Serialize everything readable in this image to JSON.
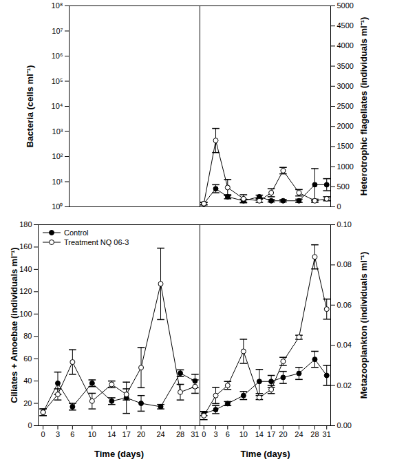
{
  "chart_data": [
    {
      "type": "line",
      "y_label": "Bacteria (cells ml⁻¹)",
      "log": "y",
      "tick_labels": "y",
      "grid": false,
      "x": [],
      "series": [],
      "xlim": [
        -1,
        32
      ],
      "ylim": [
        1,
        100000000
      ],
      "yticks": [
        {
          "value": 1,
          "label": "10⁰"
        },
        {
          "value": 10,
          "label": "10¹"
        },
        {
          "value": 100,
          "label": "10²"
        },
        {
          "value": 1000,
          "label": "10³"
        },
        {
          "value": 10000,
          "label": "10⁴"
        },
        {
          "value": 100000,
          "label": "10⁵"
        },
        {
          "value": 1000000,
          "label": "10⁶"
        },
        {
          "value": 10000000,
          "label": "10⁷"
        },
        {
          "value": 100000000,
          "label": "10⁸"
        }
      ]
    },
    {
      "type": "line",
      "y_label": "Heterotrophic flagellates (individuals ml⁻¹)",
      "tick_labels": "y",
      "grid": false,
      "x": [
        0,
        3,
        6,
        10,
        14,
        17,
        20,
        24,
        28,
        31
      ],
      "series": [
        {
          "name": "Control",
          "color": "#000000",
          "marker": "circle",
          "values": [
            80,
            450,
            250,
            150,
            250,
            150,
            150,
            150,
            550,
            550
          ],
          "errors": [
            30,
            100,
            50,
            40,
            40,
            30,
            30,
            40,
            400,
            150
          ]
        },
        {
          "name": "Treatment NQ 06-3",
          "color": "#000000",
          "marker": "open_circle",
          "values": [
            80,
            1650,
            480,
            200,
            150,
            350,
            900,
            350,
            150,
            200
          ],
          "errors": [
            30,
            300,
            200,
            100,
            40,
            100,
            80,
            80,
            40,
            50
          ]
        }
      ],
      "xlim": [
        -1,
        32
      ],
      "ylim": [
        0,
        5000
      ],
      "yticks": [
        0,
        500,
        1000,
        1500,
        2000,
        2500,
        3000,
        3500,
        4000,
        4500,
        5000
      ]
    },
    {
      "type": "line",
      "x_label": "Time (days)",
      "y_label": "Ciliates + Amoebae (individuals ml⁻¹)",
      "legend": "top-left",
      "grid": false,
      "x": [
        0,
        3,
        6,
        10,
        14,
        17,
        20,
        24,
        28,
        31
      ],
      "series": [
        {
          "name": "Control",
          "color": "#000000",
          "marker": "circle",
          "values": [
            12,
            38,
            17,
            38,
            22,
            25,
            20,
            17,
            47,
            40
          ],
          "errors": [
            3,
            10,
            3,
            3,
            3,
            14,
            7,
            2,
            3,
            6
          ]
        },
        {
          "name": "Treatment NQ 06-3",
          "color": "#000000",
          "marker": "open_circle",
          "values": [
            12,
            28,
            57,
            22,
            37,
            28,
            52,
            127,
            30,
            35
          ],
          "errors": [
            3,
            5,
            11,
            7,
            3,
            5,
            18,
            32,
            7,
            6
          ]
        }
      ],
      "xlim": [
        -1,
        32
      ],
      "xticks": [
        0,
        3,
        6,
        10,
        14,
        17,
        20,
        24,
        28,
        31
      ],
      "ylim": [
        0,
        180
      ],
      "yticks": [
        0,
        20,
        40,
        60,
        80,
        100,
        120,
        140,
        160,
        180
      ]
    },
    {
      "type": "line",
      "x_label": "Time (days)",
      "y_label": "Metazooplankton (individuals ml⁻¹)",
      "grid": false,
      "x": [
        0,
        3,
        6,
        10,
        14,
        17,
        20,
        24,
        28,
        31
      ],
      "series": [
        {
          "name": "Control",
          "color": "#000000",
          "marker": "circle",
          "values": [
            0.006,
            0.008,
            0.011,
            0.015,
            0.022,
            0.022,
            0.024,
            0.026,
            0.033,
            0.025
          ],
          "errors": [
            0.001,
            0.002,
            0.001,
            0.002,
            0.006,
            0.003,
            0.003,
            0.003,
            0.004,
            0.005
          ]
        },
        {
          "name": "Treatment NQ 06-3",
          "color": "#000000",
          "marker": "open_circle",
          "values": [
            0.005,
            0.015,
            0.02,
            0.037,
            0.014,
            0.018,
            0.032,
            0.044,
            0.084,
            0.058
          ],
          "errors": [
            0.002,
            0.004,
            0.002,
            0.006,
            0.001,
            0.002,
            0.002,
            0.001,
            0.006,
            0.005
          ]
        }
      ],
      "xlim": [
        -1,
        32
      ],
      "xticks": [
        0,
        3,
        6,
        10,
        14,
        17,
        20,
        24,
        28,
        31
      ],
      "ylim": [
        0,
        0.1
      ],
      "yticks": [
        {
          "value": 0,
          "label": "0.00"
        },
        {
          "value": 0.02,
          "label": "0.02"
        },
        {
          "value": 0.04,
          "label": "0.04"
        },
        {
          "value": 0.06,
          "label": "0.06"
        },
        {
          "value": 0.08,
          "label": "0.08"
        },
        {
          "value": 0.1,
          "label": "0.10"
        }
      ]
    }
  ]
}
